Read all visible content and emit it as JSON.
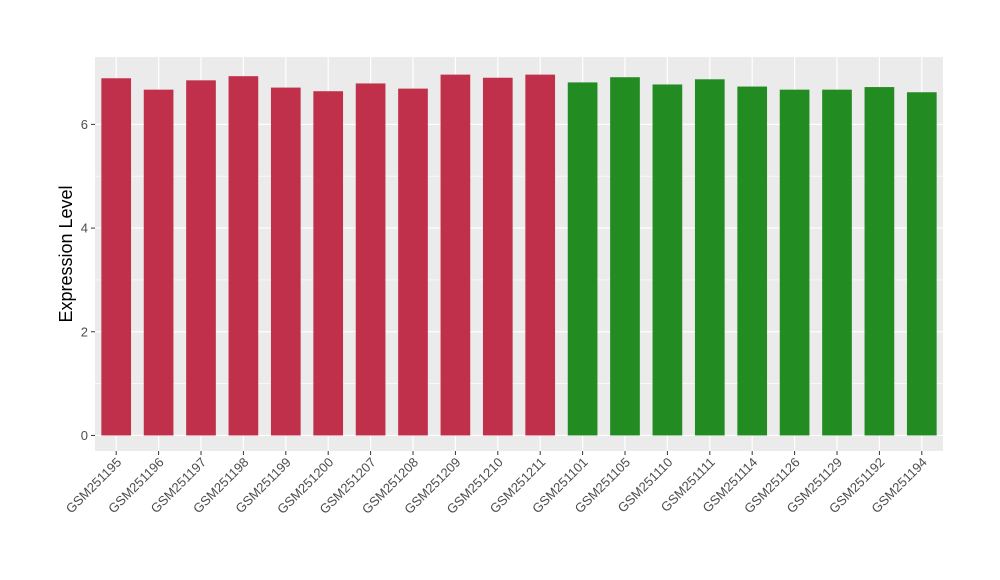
{
  "chart_data": {
    "type": "bar",
    "title": "",
    "xlabel": "",
    "ylabel": "Expression Level",
    "ylim": [
      -0.3,
      7.3
    ],
    "yticks": [
      0,
      2,
      4,
      6
    ],
    "ytick_labels": [
      "0",
      "2",
      "4",
      "6"
    ],
    "grid": true,
    "legend": "none",
    "categories": [
      "GSM251195",
      "GSM251196",
      "GSM251197",
      "GSM251198",
      "GSM251199",
      "GSM251200",
      "GSM251207",
      "GSM251208",
      "GSM251209",
      "GSM251210",
      "GSM251211",
      "GSM251101",
      "GSM251105",
      "GSM251110",
      "GSM251111",
      "GSM251114",
      "GSM251126",
      "GSM251129",
      "GSM251192",
      "GSM251194"
    ],
    "values": [
      6.89,
      6.67,
      6.85,
      6.93,
      6.71,
      6.64,
      6.79,
      6.69,
      6.96,
      6.9,
      6.96,
      6.81,
      6.91,
      6.77,
      6.87,
      6.73,
      6.67,
      6.67,
      6.72,
      6.62
    ],
    "bar_colors": [
      "#c0304a",
      "#c0304a",
      "#c0304a",
      "#c0304a",
      "#c0304a",
      "#c0304a",
      "#c0304a",
      "#c0304a",
      "#c0304a",
      "#c0304a",
      "#c0304a",
      "#228b22",
      "#228b22",
      "#228b22",
      "#228b22",
      "#228b22",
      "#228b22",
      "#228b22",
      "#228b22",
      "#228b22"
    ],
    "panel_background": "#ebebeb",
    "gridline_color": "#ffffff"
  }
}
